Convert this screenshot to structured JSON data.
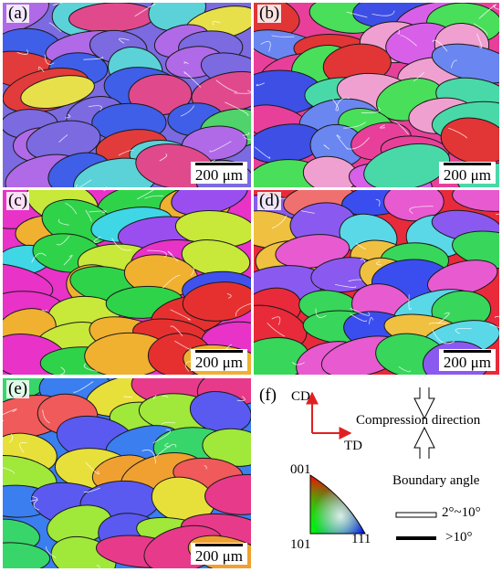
{
  "panels": [
    {
      "label": "(a)",
      "scale": "200 μm",
      "palette": [
        "#7b6ae0",
        "#e04a8c",
        "#4fd36a",
        "#e23b3b",
        "#3f5fe8",
        "#b06ae8",
        "#5ad2d8",
        "#e8e04a"
      ]
    },
    {
      "label": "(b)",
      "scale": "200 μm",
      "palette": [
        "#e8409a",
        "#3e4fe6",
        "#49d9a8",
        "#e23535",
        "#6a86f0",
        "#d860e8",
        "#4adf5a",
        "#f0a0d0"
      ]
    },
    {
      "label": "(c)",
      "scale": "200 μm",
      "palette": [
        "#e832c8",
        "#2fd34a",
        "#e63030",
        "#3f52ee",
        "#f0b030",
        "#9a4ef0",
        "#3fd6e6",
        "#c8e83a"
      ]
    },
    {
      "label": "(d)",
      "scale": "200 μm",
      "palette": [
        "#e82a3a",
        "#3a4ef0",
        "#38d65a",
        "#e85ad0",
        "#f0c040",
        "#5ad8e8",
        "#8a5af0",
        "#f07070"
      ]
    },
    {
      "label": "(e)",
      "scale": "200 μm",
      "palette": [
        "#3a7ef0",
        "#e8e03a",
        "#e83a8a",
        "#38d66a",
        "#f05a5a",
        "#a0e83a",
        "#5a5af0",
        "#f0a030"
      ]
    }
  ],
  "legend": {
    "label": "(f)",
    "cd": "CD",
    "td": "TD",
    "compression": "Compression direction",
    "triangle": {
      "top": "001",
      "left": "101",
      "right": "111"
    },
    "boundary_title": "Boundary angle",
    "low_angle": "2°~10°",
    "high_angle": ">10°"
  }
}
